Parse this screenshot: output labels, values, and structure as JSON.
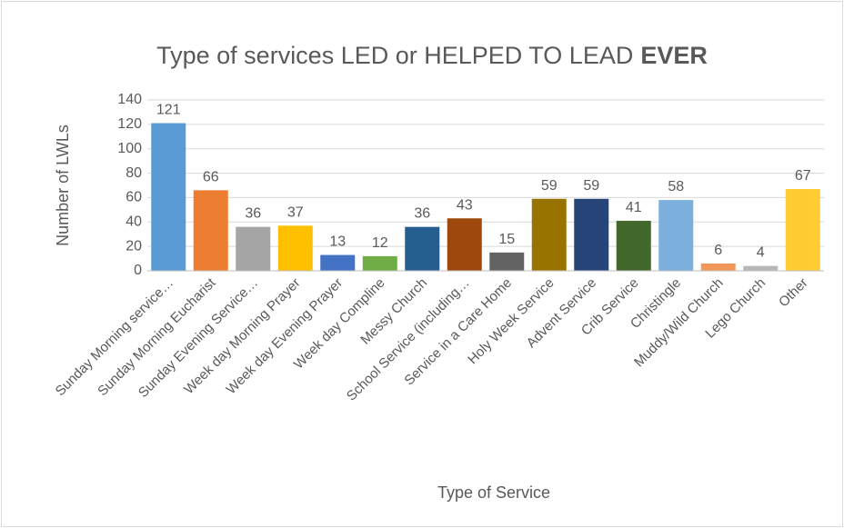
{
  "chart_data": {
    "type": "bar",
    "title": [
      "Type of services LED or HELPED TO LEAD",
      "EVER"
    ],
    "x_label": "Type of Service",
    "y_label": "Number of LWLs",
    "categories": [
      "Sunday Morning service…",
      "Sunday Morning Eucharist",
      "Sunday Evening Service…",
      "Week day Morning Prayer",
      "Week day Evening Prayer",
      "Week day Compline",
      "Messy Church",
      "School Service (including…",
      "Service in a Care Home",
      "Holy Week Service",
      "Advent Service",
      "Crib Service",
      "Christingle",
      "Muddy/Wild Church",
      "Lego Church",
      "Other"
    ],
    "values": [
      121,
      66,
      36,
      37,
      13,
      12,
      36,
      43,
      15,
      59,
      59,
      41,
      58,
      6,
      4,
      67
    ],
    "colors": [
      "#5B9BD5",
      "#ED7D31",
      "#A5A5A5",
      "#FFC000",
      "#4472C4",
      "#70AD47",
      "#255E91",
      "#9E480E",
      "#636363",
      "#997300",
      "#264478",
      "#43682B",
      "#7CAFDD",
      "#F1975A",
      "#B7B7B7",
      "#FFCD33"
    ],
    "ylim": [
      0,
      140
    ],
    "yticks": [
      0,
      20,
      40,
      60,
      80,
      100,
      120,
      140
    ],
    "grid": true
  }
}
